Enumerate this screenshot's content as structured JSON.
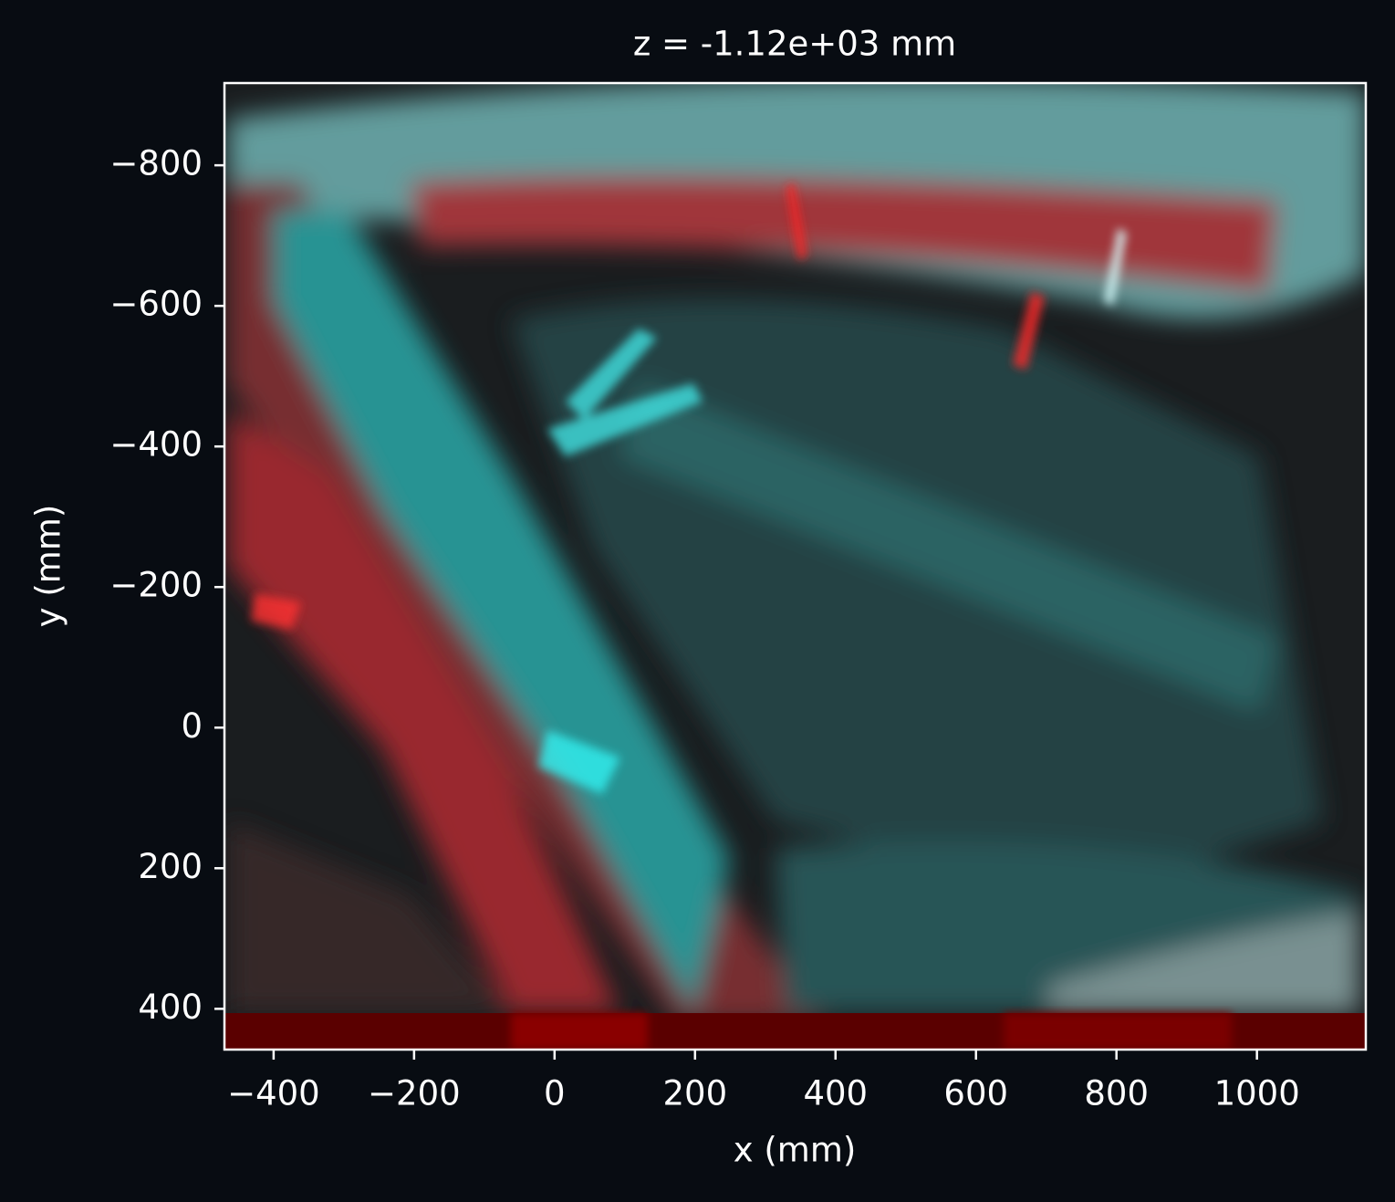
{
  "chart_data": {
    "type": "image",
    "title": "z = -1.12e+03 mm",
    "x_label": "x (mm)",
    "y_label": "y (mm)",
    "xlim": [
      -470,
      1155
    ],
    "ylim": [
      458,
      -917
    ],
    "xticks": [
      {
        "value": -400,
        "label": "−400"
      },
      {
        "value": -200,
        "label": "−200"
      },
      0,
      200,
      400,
      600,
      800,
      1000
    ],
    "yticks": [
      {
        "value": -800,
        "label": "−800"
      },
      {
        "value": -600,
        "label": "−600"
      },
      {
        "value": -400,
        "label": "−400"
      },
      {
        "value": -200,
        "label": "−200"
      },
      0,
      200,
      400
    ]
  }
}
